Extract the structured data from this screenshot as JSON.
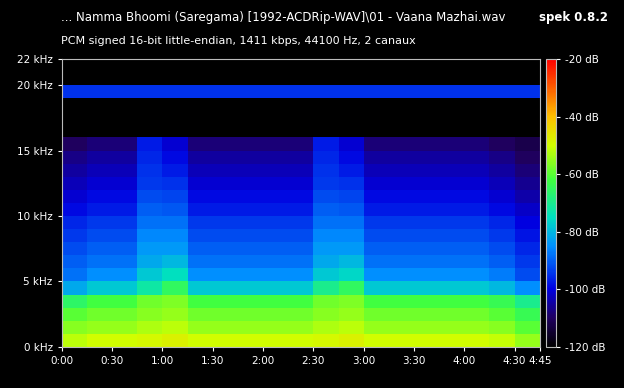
{
  "chart_data": {
    "type": "heatmap",
    "title": "... Namma Bhoomi (Saregama) [1992-ACDRip-WAV]\\01 - Vaana Mazhai.wav",
    "subtitle": "PCM signed 16-bit little-endian, 1411 kbps, 44100 Hz, 2 canaux",
    "annotations": [
      "spek 0.8.2"
    ],
    "xlim": [
      0,
      285
    ],
    "ylim": [
      0,
      22
    ],
    "xticks": [
      {
        "value": 0,
        "label": "0:00"
      },
      {
        "value": 30,
        "label": "0:30"
      },
      {
        "value": 60,
        "label": "1:00"
      },
      {
        "value": 90,
        "label": "1:30"
      },
      {
        "value": 120,
        "label": "2:00"
      },
      {
        "value": 150,
        "label": "2:30"
      },
      {
        "value": 180,
        "label": "3:00"
      },
      {
        "value": 210,
        "label": "3:30"
      },
      {
        "value": 240,
        "label": "4:00"
      },
      {
        "value": 270,
        "label": "4:30"
      },
      {
        "value": 285,
        "label": "4:45"
      }
    ],
    "yticks": [
      {
        "value": 0,
        "label": "0 kHz"
      },
      {
        "value": 5,
        "label": "5 kHz"
      },
      {
        "value": 10,
        "label": "10 kHz"
      },
      {
        "value": 15,
        "label": "15 kHz"
      },
      {
        "value": 20,
        "label": "20 kHz"
      },
      {
        "value": 22,
        "label": "22 kHz"
      }
    ],
    "x_edges": [
      0,
      15,
      30,
      45,
      60,
      75,
      90,
      105,
      120,
      135,
      150,
      165,
      180,
      195,
      210,
      225,
      240,
      255,
      270,
      285
    ],
    "y_edges": [
      0,
      1,
      2,
      3,
      4,
      5,
      6,
      7,
      8,
      9,
      10,
      11,
      12,
      13,
      14,
      15,
      16,
      17,
      18,
      19,
      20,
      21,
      22
    ],
    "cells": [
      [
        -52,
        -50,
        -50,
        -49,
        -48,
        -50,
        -50,
        -50,
        -50,
        -50,
        -49,
        -48,
        -50,
        -50,
        -50,
        -50,
        -50,
        -51,
        -55
      ],
      [
        -56,
        -55,
        -55,
        -53,
        -52,
        -55,
        -55,
        -55,
        -55,
        -55,
        -53,
        -52,
        -55,
        -55,
        -55,
        -55,
        -55,
        -56,
        -60
      ],
      [
        -60,
        -58,
        -58,
        -56,
        -55,
        -58,
        -58,
        -58,
        -58,
        -58,
        -56,
        -55,
        -58,
        -58,
        -58,
        -58,
        -58,
        -60,
        -64
      ],
      [
        -66,
        -62,
        -62,
        -58,
        -57,
        -62,
        -62,
        -62,
        -62,
        -62,
        -58,
        -57,
        -62,
        -62,
        -62,
        -62,
        -62,
        -64,
        -70
      ],
      [
        -82,
        -78,
        -78,
        -72,
        -65,
        -78,
        -78,
        -78,
        -78,
        -78,
        -70,
        -65,
        -78,
        -78,
        -78,
        -78,
        -78,
        -80,
        -85
      ],
      [
        -88,
        -85,
        -85,
        -78,
        -75,
        -85,
        -85,
        -85,
        -85,
        -85,
        -78,
        -76,
        -85,
        -85,
        -85,
        -85,
        -85,
        -87,
        -92
      ],
      [
        -90,
        -88,
        -88,
        -82,
        -80,
        -88,
        -88,
        -88,
        -88,
        -88,
        -82,
        -80,
        -88,
        -88,
        -88,
        -88,
        -88,
        -90,
        -94
      ],
      [
        -92,
        -90,
        -90,
        -84,
        -84,
        -90,
        -90,
        -90,
        -90,
        -90,
        -84,
        -84,
        -90,
        -90,
        -90,
        -90,
        -90,
        -92,
        -96
      ],
      [
        -94,
        -92,
        -92,
        -86,
        -86,
        -92,
        -92,
        -92,
        -92,
        -92,
        -86,
        -86,
        -92,
        -92,
        -92,
        -92,
        -92,
        -94,
        -98
      ],
      [
        -96,
        -94,
        -94,
        -88,
        -88,
        -94,
        -94,
        -94,
        -94,
        -94,
        -88,
        -88,
        -94,
        -94,
        -94,
        -94,
        -94,
        -96,
        -100
      ],
      [
        -99,
        -97,
        -97,
        -90,
        -91,
        -97,
        -97,
        -97,
        -97,
        -97,
        -90,
        -91,
        -97,
        -97,
        -97,
        -97,
        -97,
        -99,
        -102
      ],
      [
        -101,
        -99,
        -99,
        -92,
        -93,
        -99,
        -99,
        -99,
        -99,
        -99,
        -92,
        -93,
        -99,
        -99,
        -99,
        -99,
        -99,
        -101,
        -104
      ],
      [
        -103,
        -101,
        -101,
        -94,
        -95,
        -101,
        -101,
        -101,
        -101,
        -101,
        -94,
        -95,
        -101,
        -101,
        -101,
        -101,
        -101,
        -103,
        -106
      ],
      [
        -105,
        -103,
        -103,
        -95,
        -97,
        -103,
        -103,
        -103,
        -103,
        -103,
        -95,
        -97,
        -103,
        -103,
        -103,
        -103,
        -103,
        -105,
        -108
      ],
      [
        -107,
        -105,
        -105,
        -96,
        -99,
        -105,
        -105,
        -105,
        -105,
        -105,
        -96,
        -99,
        -105,
        -105,
        -105,
        -105,
        -105,
        -107,
        -110
      ],
      [
        -110,
        -108,
        -108,
        -97,
        -101,
        -108,
        -108,
        -108,
        -108,
        -108,
        -97,
        -101,
        -108,
        -108,
        -108,
        -108,
        -108,
        -110,
        -112
      ],
      [
        -120,
        -120,
        -120,
        -120,
        -120,
        -120,
        -120,
        -120,
        -120,
        -120,
        -120,
        -120,
        -120,
        -120,
        -120,
        -120,
        -120,
        -120,
        -120
      ],
      [
        -120,
        -120,
        -120,
        -120,
        -120,
        -120,
        -120,
        -120,
        -120,
        -120,
        -120,
        -120,
        -120,
        -120,
        -120,
        -120,
        -120,
        -120,
        -120
      ],
      [
        -120,
        -120,
        -120,
        -120,
        -120,
        -120,
        -120,
        -120,
        -120,
        -120,
        -120,
        -120,
        -120,
        -120,
        -120,
        -120,
        -120,
        -120,
        -120
      ],
      [
        -95,
        -95,
        -95,
        -95,
        -95,
        -95,
        -95,
        -95,
        -95,
        -95,
        -95,
        -95,
        -95,
        -95,
        -95,
        -95,
        -95,
        -95,
        -95
      ],
      [
        -120,
        -120,
        -120,
        -120,
        -120,
        -120,
        -120,
        -120,
        -120,
        -120,
        -120,
        -120,
        -120,
        -120,
        -120,
        -120,
        -120,
        -120,
        -120
      ],
      [
        -120,
        -120,
        -120,
        -120,
        -120,
        -120,
        -120,
        -120,
        -120,
        -120,
        -120,
        -120,
        -120,
        -120,
        -120,
        -120,
        -120,
        -120,
        -120
      ]
    ],
    "colorbar_range": [
      -120,
      -20
    ],
    "colorbar_ticks": [
      {
        "value": -20,
        "label": "-20 dB"
      },
      {
        "value": -40,
        "label": "-40 dB"
      },
      {
        "value": -60,
        "label": "-60 dB"
      },
      {
        "value": -80,
        "label": "-80 dB"
      },
      {
        "value": -100,
        "label": "-100 dB"
      },
      {
        "value": -120,
        "label": "-120 dB"
      }
    ]
  }
}
